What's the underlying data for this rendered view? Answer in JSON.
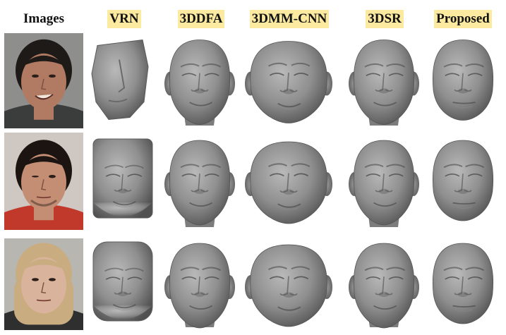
{
  "figure": {
    "columns": [
      "Images",
      "VRN",
      "3DDFA",
      "3DMM-CNN",
      "3DSR",
      "Proposed"
    ],
    "highlight_color": "#fbeaa0",
    "rows": [
      {
        "photo": {
          "bg": "#8e8f8c",
          "skin": "#b07b62",
          "hair": "#1e1a18",
          "shirt": "#3a3d3b",
          "expression": "smiling"
        }
      },
      {
        "photo": {
          "bg": "#cfc8c2",
          "skin": "#c48e74",
          "hair": "#1b1411",
          "shirt": "#c0392b",
          "expression": "squinting"
        }
      },
      {
        "photo": {
          "bg": "#b8b6b0",
          "skin": "#d9b39b",
          "hair": "#c9ad80",
          "shirt": "#2f2f30",
          "expression": "neutral"
        }
      }
    ],
    "reconstructions": {
      "vrn": [
        "blocky-skewed-mesh",
        "blocky-mesh",
        "smooth-mesh"
      ],
      "3ddfa": [
        "mesh",
        "mesh",
        "mesh"
      ],
      "3dmm-cnn": [
        "wide-mesh",
        "wide-mesh",
        "wide-mesh"
      ],
      "3dsr": [
        "mesh",
        "mesh",
        "mesh"
      ],
      "proposed": [
        "detailed-mesh",
        "detailed-mesh",
        "detailed-mesh"
      ]
    }
  }
}
